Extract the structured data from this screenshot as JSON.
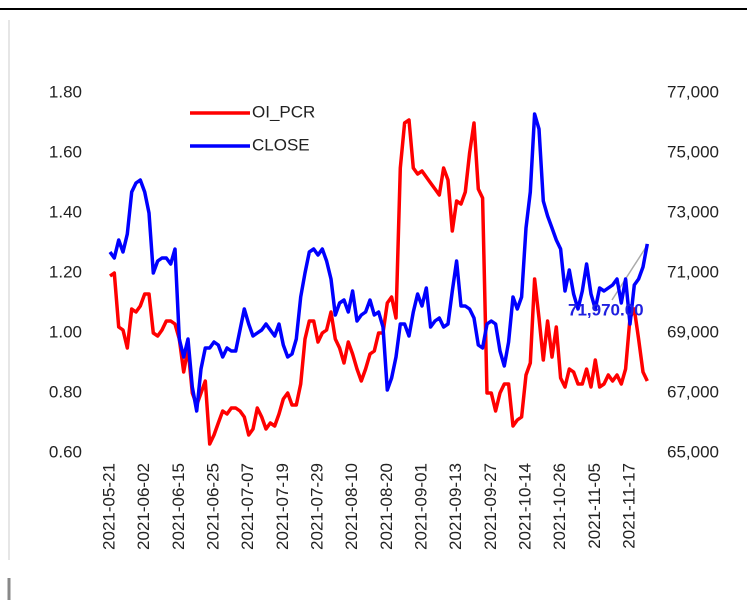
{
  "chart_data": {
    "type": "line",
    "categories": [
      "2021-05-21",
      null,
      null,
      null,
      null,
      null,
      null,
      null,
      "2021-06-02",
      null,
      null,
      null,
      null,
      null,
      null,
      null,
      "2021-06-15",
      null,
      null,
      null,
      null,
      null,
      null,
      null,
      "2021-06-25",
      null,
      null,
      null,
      null,
      null,
      null,
      null,
      "2021-07-07",
      null,
      null,
      null,
      null,
      null,
      null,
      null,
      "2021-07-19",
      null,
      null,
      null,
      null,
      null,
      null,
      null,
      "2021-07-29",
      null,
      null,
      null,
      null,
      null,
      null,
      null,
      "2021-08-10",
      null,
      null,
      null,
      null,
      null,
      null,
      null,
      "2021-08-20",
      null,
      null,
      null,
      null,
      null,
      null,
      null,
      "2021-09-01",
      null,
      null,
      null,
      null,
      null,
      null,
      null,
      "2021-09-13",
      null,
      null,
      null,
      null,
      null,
      null,
      null,
      "2021-09-27",
      null,
      null,
      null,
      null,
      null,
      null,
      null,
      "2021-10-14",
      null,
      null,
      null,
      null,
      null,
      null,
      null,
      "2021-10-26",
      null,
      null,
      null,
      null,
      null,
      null,
      null,
      "2021-11-05",
      null,
      null,
      null,
      null,
      null,
      null,
      null,
      "2021-11-17",
      null,
      null,
      null,
      null
    ],
    "series": [
      {
        "name": "OI_PCR",
        "color": "#ff0000",
        "values": [
          1.19,
          1.2,
          1.02,
          1.01,
          0.95,
          1.08,
          1.07,
          1.09,
          1.13,
          1.13,
          1.0,
          0.99,
          1.01,
          1.04,
          1.04,
          1.03,
          0.98,
          0.87,
          0.95,
          0.8,
          0.76,
          0.8,
          0.84,
          0.63,
          0.66,
          0.7,
          0.74,
          0.73,
          0.75,
          0.75,
          0.74,
          0.72,
          0.66,
          0.68,
          0.75,
          0.72,
          0.68,
          0.7,
          0.69,
          0.73,
          0.78,
          0.8,
          0.76,
          0.76,
          0.83,
          0.98,
          1.04,
          1.04,
          0.97,
          1.0,
          1.01,
          1.07,
          0.98,
          0.95,
          0.9,
          0.97,
          0.93,
          0.88,
          0.84,
          0.88,
          0.93,
          0.94,
          1.0,
          1.0,
          1.1,
          1.12,
          1.05,
          1.55,
          1.7,
          1.71,
          1.55,
          1.53,
          1.54,
          1.52,
          1.5,
          1.48,
          1.46,
          1.55,
          1.51,
          1.34,
          1.44,
          1.43,
          1.47,
          1.6,
          1.7,
          1.48,
          1.45,
          0.8,
          0.8,
          0.74,
          0.8,
          0.83,
          0.83,
          0.69,
          0.71,
          0.72,
          0.86,
          0.9,
          1.18,
          1.05,
          0.91,
          1.04,
          0.92,
          1.02,
          0.85,
          0.82,
          0.88,
          0.87,
          0.83,
          0.83,
          0.88,
          0.82,
          0.91,
          0.82,
          0.83,
          0.86,
          0.84,
          0.86,
          0.83,
          0.88,
          1.05,
          1.08,
          0.98,
          0.87,
          0.84
        ]
      },
      {
        "name": "CLOSE",
        "color": "#0000ff",
        "axis": "y2",
        "values": [
          71700,
          71500,
          72100,
          71700,
          72300,
          73700,
          74000,
          74100,
          73700,
          73000,
          71000,
          71400,
          71500,
          71500,
          71300,
          71800,
          68800,
          68200,
          68800,
          67200,
          66400,
          67800,
          68500,
          68500,
          68700,
          68600,
          68200,
          68500,
          68400,
          68400,
          69100,
          69800,
          69300,
          68900,
          69000,
          69100,
          69300,
          69100,
          68900,
          69300,
          68600,
          68200,
          68300,
          68800,
          70200,
          71000,
          71700,
          71800,
          71600,
          71800,
          71400,
          70800,
          69600,
          70000,
          70100,
          69700,
          70400,
          69400,
          69600,
          69700,
          70100,
          69600,
          69700,
          69200,
          67100,
          67500,
          68200,
          69300,
          69300,
          68900,
          69700,
          70300,
          69900,
          70500,
          69200,
          69400,
          69500,
          69200,
          69300,
          70400,
          71400,
          69900,
          69900,
          69800,
          69500,
          68600,
          68500,
          69300,
          69400,
          69300,
          68400,
          67900,
          68700,
          70200,
          69800,
          70200,
          72500,
          73700,
          76300,
          75800,
          73400,
          72900,
          72500,
          72100,
          71800,
          70400,
          71100,
          70300,
          69800,
          70400,
          71300,
          70300,
          69800,
          70500,
          70400,
          70500,
          70600,
          70800,
          70000,
          70800,
          69300,
          70600,
          70800,
          71200,
          71970
        ]
      }
    ],
    "ylim": [
      0.6,
      1.8
    ],
    "yticks": [
      {
        "value": 0.6,
        "label": "0.60"
      },
      {
        "value": 0.8,
        "label": "0.80"
      },
      {
        "value": 1.0,
        "label": "1.00"
      },
      {
        "value": 1.2,
        "label": "1.20"
      },
      {
        "value": 1.4,
        "label": "1.40"
      },
      {
        "value": 1.6,
        "label": "1.60"
      },
      {
        "value": 1.8,
        "label": "1.80"
      }
    ],
    "y2lim": [
      65000,
      77000
    ],
    "y2ticks": [
      {
        "value": 65000,
        "label": "65,000"
      },
      {
        "value": 67000,
        "label": "67,000"
      },
      {
        "value": 69000,
        "label": "69,000"
      },
      {
        "value": 71000,
        "label": "71,000"
      },
      {
        "value": 73000,
        "label": "73,000"
      },
      {
        "value": 75000,
        "label": "75,000"
      },
      {
        "value": 77000,
        "label": "77,000"
      }
    ],
    "annotation": {
      "value": 71970,
      "label": "71,970.00"
    },
    "grid": false
  }
}
